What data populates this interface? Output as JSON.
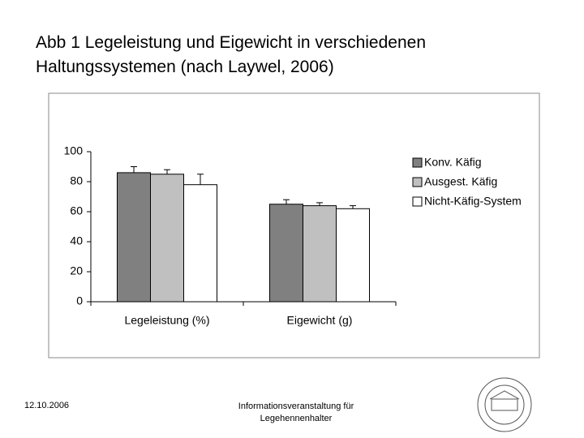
{
  "slide_title": "Abb 1 Legeleistung und Eigewicht in verschiedenen Haltungssystemen (nach Laywel, 2006)",
  "footer_date": "12.10.2006",
  "footer_text": "Informationsveranstaltung für Legehennenhalter",
  "chart_data": {
    "type": "bar",
    "categories": [
      "Legeleistung (%)",
      "Eigewicht (g)"
    ],
    "series": [
      {
        "name": "Konv. Käfig",
        "color": "#808080",
        "values": [
          86,
          65
        ],
        "errors": [
          4,
          3
        ]
      },
      {
        "name": "Ausgest. Käfig",
        "color": "#c0c0c0",
        "values": [
          85,
          64
        ],
        "errors": [
          3,
          2
        ]
      },
      {
        "name": "Nicht-Käfig-System",
        "color": "#ffffff",
        "values": [
          78,
          62
        ],
        "errors": [
          7,
          2
        ]
      }
    ],
    "ylim": [
      0,
      100
    ],
    "yticks": [
      0,
      20,
      40,
      60,
      80,
      100
    ],
    "grid": false,
    "legend": "right"
  }
}
